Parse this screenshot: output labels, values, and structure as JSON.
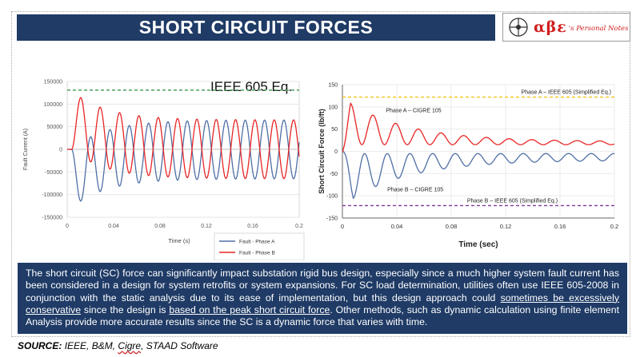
{
  "page": {
    "title": "SHORT CIRCUIT FORCES",
    "logo_text": "αβε",
    "logo_subtext": "'s Personal Notes"
  },
  "description": {
    "p1": "The short circuit (SC) force can significantly impact substation rigid bus design, especially since a much higher system fault current has been considered in a design for system retrofits or system expansions. For SC load determination, utilities often use IEEE 605-2008 in conjunction with the static analysis due to its ease of implementation, but this design approach could ",
    "u1": "sometimes be excessively conservative",
    "p2": " since the design is ",
    "u2": "based on the peak short circuit force",
    "p3": ". Other methods, such as dynamic calculation using finite element Analysis provide more accurate results since the SC is a dynamic force that varies with time."
  },
  "source": {
    "label": "SOURCE:",
    "items": [
      "IEEE",
      "B&M",
      "Cigre",
      "STAAD Software"
    ]
  },
  "colors": {
    "title_bg": "#1f3b66",
    "phase_a": "#e82525",
    "phase_b": "#4f6fa6",
    "ieee_a": "#f0c419",
    "ieee_b": "#7d3c98",
    "eq_line": "#5aa86a"
  },
  "chart_data": [
    {
      "type": "line",
      "title": "IEEE 605 Eq.",
      "xlabel": "Time (s)",
      "ylabel": "Fault Current (A)",
      "xlim": [
        0,
        0.2
      ],
      "ylim": [
        -150000,
        150000
      ],
      "xticks": [
        0,
        0.04,
        0.08,
        0.12,
        0.16,
        0.2
      ],
      "xtick_labels": [
        "0",
        "0.04",
        "0.08",
        "0.12",
        "0.16",
        "0.2"
      ],
      "yticks": [
        -150000,
        -100000,
        -50000,
        0,
        50000,
        100000,
        150000
      ],
      "ytick_labels": [
        "-150000",
        "-100000",
        "-50000",
        "0",
        "50000",
        "100000",
        "150000"
      ],
      "reference_line": {
        "y": 131000,
        "style": "dashed"
      },
      "legend": [
        "Fault - Phase A",
        "Fault - Phase B"
      ],
      "series": [
        {
          "name": "Fault - Phase B",
          "amplitude": 65000,
          "dc_offset": -65000,
          "tau": 0.03,
          "cycles_per_s": 60,
          "phase": "cos"
        },
        {
          "name": "Fault - Phase A",
          "amplitude": 65000,
          "dc_offset": 65000,
          "tau": 0.03,
          "cycles_per_s": 60,
          "phase": "cos"
        }
      ],
      "peaks": {
        "Fault - Phase A": 130000,
        "Fault - Phase B": -130000
      }
    },
    {
      "type": "line",
      "title": "",
      "xlabel": "Time (sec)",
      "ylabel": "Short Circuit Force (lb/ft)",
      "xlim": [
        0,
        0.2
      ],
      "ylim": [
        -150,
        150
      ],
      "xticks": [
        0,
        0.04,
        0.08,
        0.12,
        0.16,
        0.2
      ],
      "xtick_labels": [
        "0",
        "0.04",
        "0.08",
        "0.12",
        "0.16",
        "0.2"
      ],
      "yticks": [
        -150,
        -100,
        -50,
        0,
        50,
        100,
        150
      ],
      "ytick_labels": [
        "-150",
        "-100",
        "-50",
        "0",
        "50",
        "100",
        "150"
      ],
      "reference_lines": [
        {
          "y": 122,
          "label": "Phase A – IEEE 605 (Simplified Eq.)"
        },
        {
          "y": -122,
          "label": "Phase B – IEEE 605 (Simplified Eq.)"
        }
      ],
      "series": [
        {
          "name": "Phase A – CIGRE 105",
          "peak": 120,
          "peak_time": 0.006,
          "decay": 0.045,
          "floor": 22,
          "settle": 15
        },
        {
          "name": "Phase B – CIGRE 105",
          "peak": -122,
          "peak_time": 0.008,
          "decay": 0.045,
          "floor": -20,
          "settle": -5
        }
      ]
    }
  ]
}
